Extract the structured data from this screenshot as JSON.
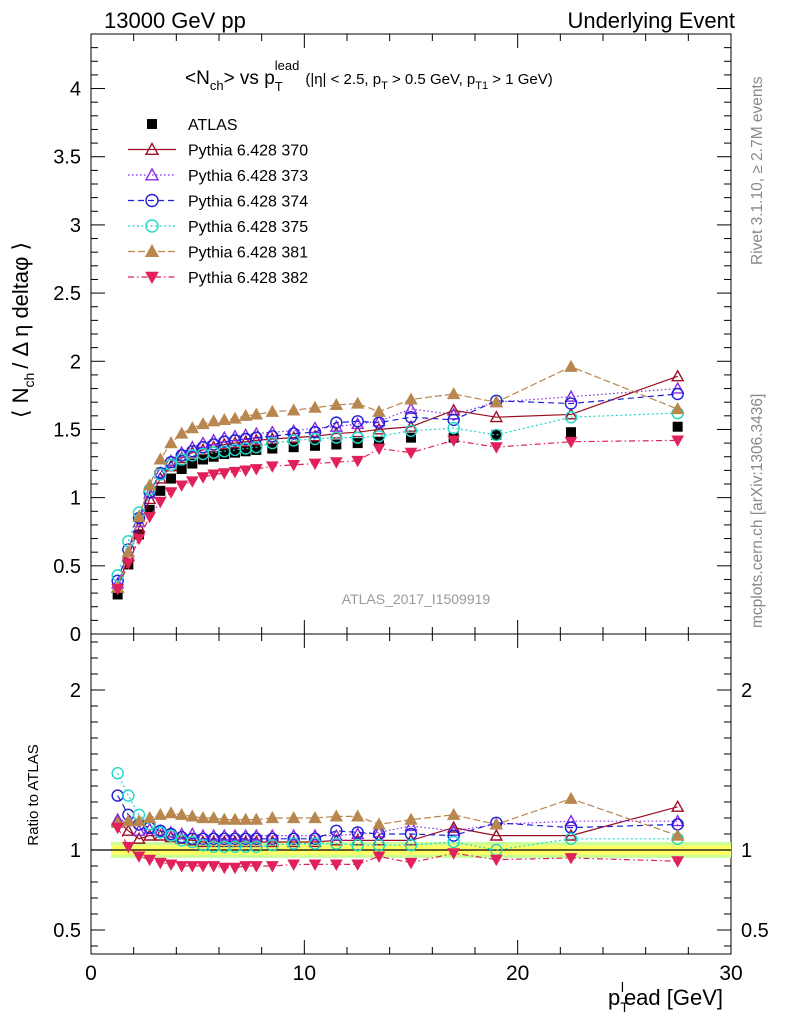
{
  "header": {
    "left": "13000 GeV pp",
    "right": "Underlying Event"
  },
  "side": {
    "rivet": "Rivet 3.1.10, ≥ 2.7M events",
    "mcplots": "mcplots.cern.ch [arXiv:1306.3436]"
  },
  "watermark": "ATLAS_2017_I1509919",
  "colors": {
    "ATLAS": "#000000",
    "p370": "#9b0e25",
    "p373": "#8a2be2",
    "p374": "#1f1fd6",
    "p375": "#1ed9c8",
    "p381": "#b8874f",
    "p382": "#e0215a",
    "band_inner": "#ffff66",
    "band_outer": "#ccff99"
  },
  "chart_data": [
    {
      "panel": "main",
      "type": "scatter",
      "title": {
        "main": "<N",
        "main_sub": "ch",
        "main_mid": "> vs p",
        "main_sub2": "T",
        "main_sup": "lead",
        "cond": "(|η| < 2.5, p",
        "cond_sub1": "T",
        "cond_mid": " > 0.5 GeV, p",
        "cond_sub2": "T1",
        "cond_end": " > 1 GeV)"
      },
      "ylabel": {
        "pre": "⟨ N",
        "sub": "ch",
        "post": "/ Δ η deltaφ ⟩"
      },
      "xlim": [
        0,
        30
      ],
      "ylim": [
        0,
        4.4
      ],
      "yticks": [
        "0",
        "0.5",
        "1",
        "1.5",
        "2",
        "2.5",
        "3",
        "3.5",
        "4"
      ],
      "legend_position": "top-left",
      "x": [
        1.25,
        1.75,
        2.25,
        2.75,
        3.25,
        3.75,
        4.25,
        4.75,
        5.25,
        5.75,
        6.25,
        6.75,
        7.25,
        7.75,
        8.5,
        9.5,
        10.5,
        11.5,
        12.5,
        13.5,
        15,
        17,
        19,
        22.5,
        27.5
      ],
      "series": [
        {
          "key": "ATLAS",
          "name": "ATLAS",
          "marker": "square",
          "dash": "",
          "values": [
            0.29,
            0.51,
            0.73,
            0.91,
            1.05,
            1.14,
            1.21,
            1.25,
            1.28,
            1.3,
            1.32,
            1.33,
            1.34,
            1.35,
            1.36,
            1.37,
            1.38,
            1.39,
            1.4,
            1.41,
            1.44,
            1.44,
            1.46,
            1.48,
            1.52
          ]
        },
        {
          "key": "p370",
          "name": "Pythia 6.428 370",
          "marker": "tri-up-open",
          "dash": "",
          "values": [
            0.34,
            0.57,
            0.78,
            0.99,
            1.14,
            1.23,
            1.29,
            1.33,
            1.35,
            1.37,
            1.39,
            1.4,
            1.41,
            1.42,
            1.43,
            1.44,
            1.45,
            1.47,
            1.48,
            1.5,
            1.52,
            1.64,
            1.59,
            1.61,
            1.89
          ]
        },
        {
          "key": "p373",
          "name": "Pythia 6.428 373",
          "marker": "tri-up-open",
          "dash": "1.5,2.5",
          "values": [
            0.37,
            0.6,
            0.82,
            1.03,
            1.18,
            1.27,
            1.33,
            1.37,
            1.4,
            1.42,
            1.44,
            1.45,
            1.46,
            1.47,
            1.48,
            1.49,
            1.51,
            1.52,
            1.54,
            1.56,
            1.65,
            1.61,
            1.7,
            1.74,
            1.8
          ]
        },
        {
          "key": "p374",
          "name": "Pythia 6.428 374",
          "marker": "circle-open",
          "dash": "6,4",
          "values": [
            0.39,
            0.62,
            0.85,
            1.04,
            1.18,
            1.26,
            1.31,
            1.34,
            1.37,
            1.39,
            1.41,
            1.42,
            1.43,
            1.44,
            1.45,
            1.47,
            1.48,
            1.55,
            1.56,
            1.55,
            1.59,
            1.57,
            1.71,
            1.69,
            1.76
          ]
        },
        {
          "key": "p375",
          "name": "Pythia 6.428 375",
          "marker": "circle-open",
          "dash": "2,2.5",
          "values": [
            0.43,
            0.68,
            0.89,
            1.06,
            1.17,
            1.24,
            1.28,
            1.31,
            1.32,
            1.33,
            1.34,
            1.35,
            1.36,
            1.37,
            1.4,
            1.42,
            1.43,
            1.44,
            1.44,
            1.45,
            1.49,
            1.51,
            1.46,
            1.59,
            1.62
          ]
        },
        {
          "key": "p381",
          "name": "Pythia 6.428 381",
          "marker": "tri-up-fill",
          "dash": "7,3",
          "values": [
            0.34,
            0.6,
            0.86,
            1.09,
            1.28,
            1.4,
            1.47,
            1.51,
            1.54,
            1.56,
            1.57,
            1.58,
            1.6,
            1.61,
            1.63,
            1.64,
            1.66,
            1.68,
            1.69,
            1.63,
            1.72,
            1.76,
            1.7,
            1.96,
            1.65
          ]
        },
        {
          "key": "p382",
          "name": "Pythia 6.428 382",
          "marker": "tri-down-fill",
          "dash": "6,3,1.5,3",
          "values": [
            0.33,
            0.52,
            0.7,
            0.86,
            0.97,
            1.04,
            1.09,
            1.12,
            1.15,
            1.17,
            1.18,
            1.19,
            1.2,
            1.21,
            1.23,
            1.24,
            1.25,
            1.26,
            1.27,
            1.36,
            1.33,
            1.42,
            1.37,
            1.41,
            1.42
          ]
        }
      ]
    },
    {
      "panel": "ratio",
      "type": "scatter",
      "ylabel": "Ratio to ATLAS",
      "xlabel": {
        "pre": "p",
        "sub": "T",
        "sup": "l",
        "post": "ead [GeV]"
      },
      "xlim": [
        0,
        30
      ],
      "xticks": [
        "0",
        "10",
        "20",
        "30"
      ],
      "ylim": [
        0.35,
        2.35
      ],
      "yticks": [
        "0.5",
        "1",
        "2"
      ],
      "reference_band": [
        0.97,
        1.03
      ],
      "series": [
        {
          "key": "p370",
          "values": [
            1.18,
            1.12,
            1.07,
            1.09,
            1.09,
            1.08,
            1.07,
            1.06,
            1.05,
            1.05,
            1.05,
            1.05,
            1.05,
            1.05,
            1.05,
            1.05,
            1.05,
            1.06,
            1.06,
            1.06,
            1.06,
            1.14,
            1.09,
            1.09,
            1.27
          ]
        },
        {
          "key": "p373",
          "values": [
            1.19,
            1.18,
            1.12,
            1.13,
            1.12,
            1.11,
            1.1,
            1.1,
            1.09,
            1.09,
            1.09,
            1.09,
            1.09,
            1.09,
            1.09,
            1.09,
            1.09,
            1.09,
            1.1,
            1.11,
            1.15,
            1.12,
            1.16,
            1.18,
            1.18
          ]
        },
        {
          "key": "p374",
          "values": [
            1.34,
            1.22,
            1.16,
            1.14,
            1.12,
            1.1,
            1.08,
            1.07,
            1.07,
            1.07,
            1.07,
            1.07,
            1.07,
            1.07,
            1.07,
            1.07,
            1.07,
            1.12,
            1.11,
            1.1,
            1.1,
            1.09,
            1.17,
            1.14,
            1.16
          ]
        },
        {
          "key": "p375",
          "values": [
            1.48,
            1.34,
            1.22,
            1.16,
            1.11,
            1.09,
            1.06,
            1.05,
            1.03,
            1.02,
            1.02,
            1.02,
            1.02,
            1.02,
            1.03,
            1.04,
            1.04,
            1.04,
            1.03,
            1.03,
            1.03,
            1.05,
            1.0,
            1.07,
            1.07
          ]
        },
        {
          "key": "p381",
          "values": [
            1.17,
            1.18,
            1.18,
            1.2,
            1.22,
            1.23,
            1.22,
            1.21,
            1.2,
            1.2,
            1.19,
            1.19,
            1.19,
            1.19,
            1.2,
            1.2,
            1.2,
            1.21,
            1.21,
            1.16,
            1.19,
            1.22,
            1.16,
            1.32,
            1.09
          ]
        },
        {
          "key": "p382",
          "values": [
            1.14,
            1.02,
            0.96,
            0.94,
            0.92,
            0.91,
            0.9,
            0.9,
            0.9,
            0.9,
            0.89,
            0.89,
            0.9,
            0.9,
            0.9,
            0.91,
            0.91,
            0.91,
            0.91,
            0.96,
            0.92,
            0.98,
            0.94,
            0.95,
            0.93
          ]
        }
      ]
    }
  ]
}
